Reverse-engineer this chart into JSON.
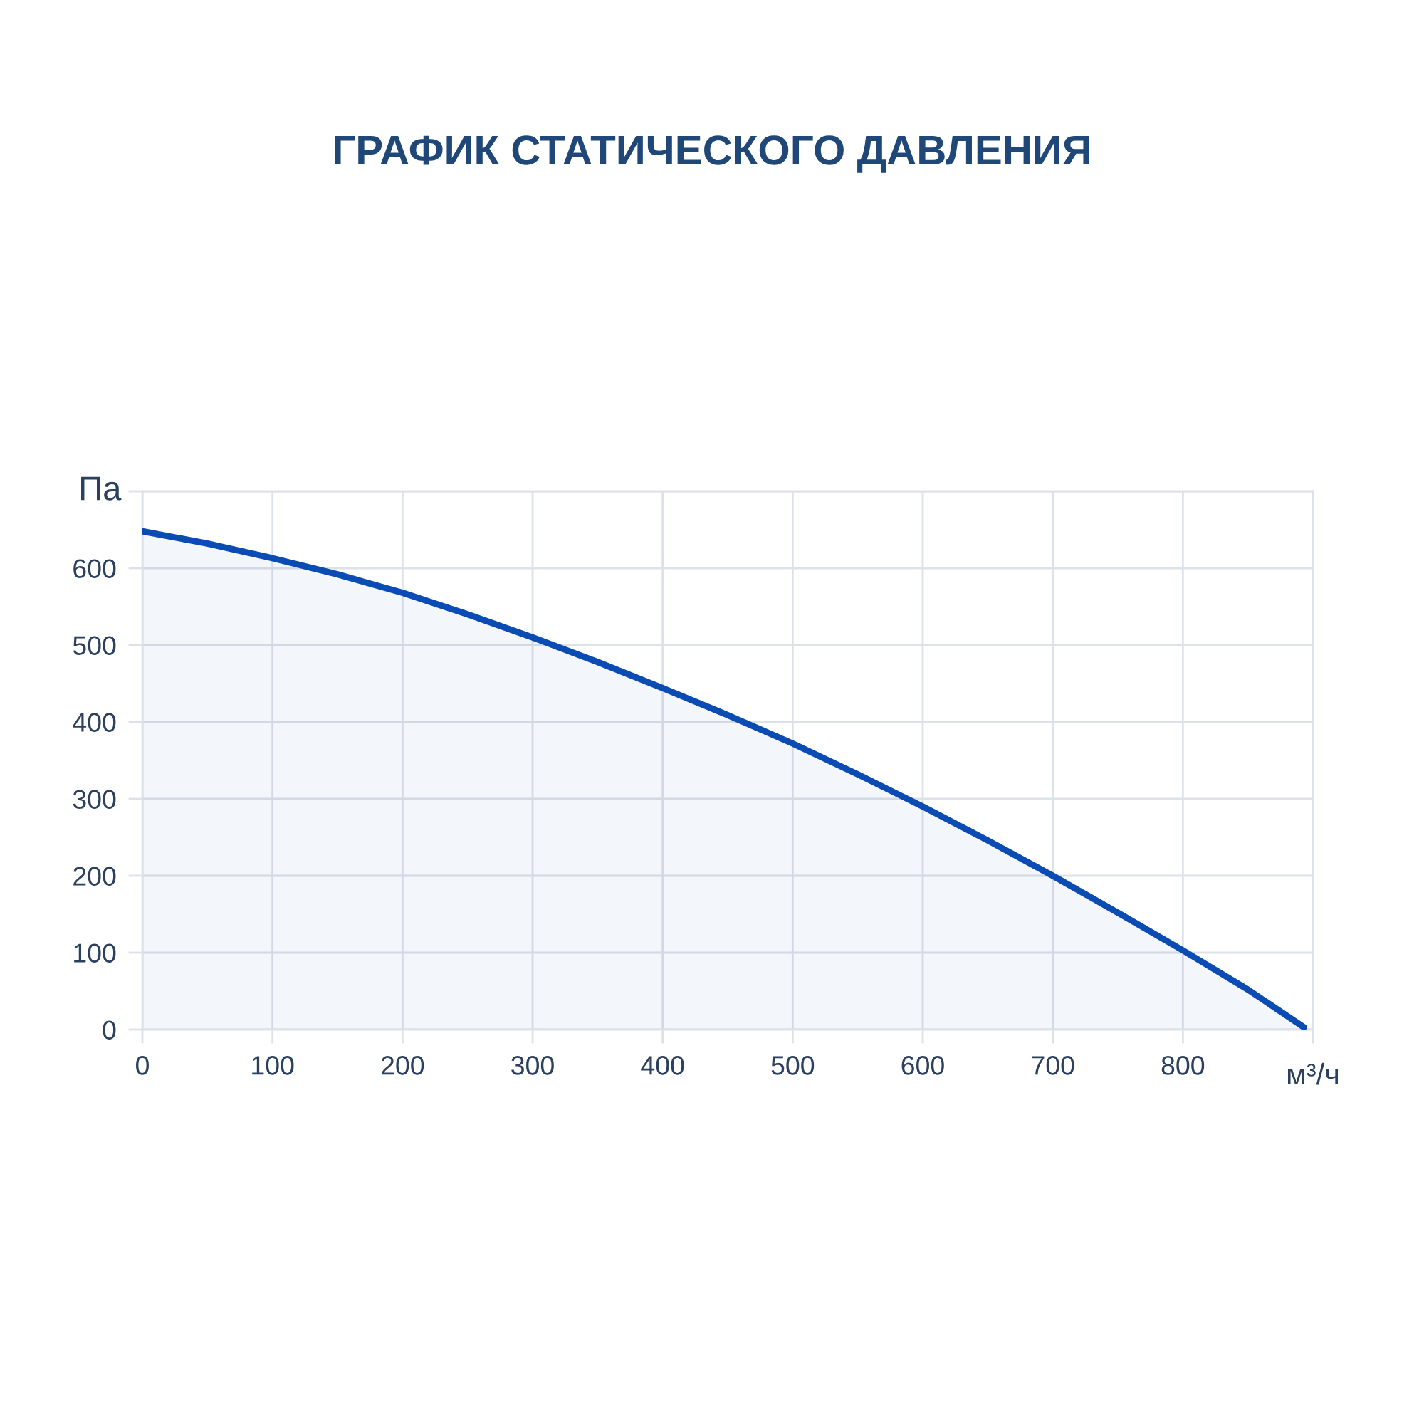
{
  "chart_data": {
    "type": "area",
    "title": "ГРАФИК СТАТИЧЕСКОГО ДАВЛЕНИЯ",
    "xlabel": "м³/ч",
    "ylabel": "Па",
    "x": [
      0,
      50,
      100,
      150,
      200,
      250,
      300,
      350,
      400,
      450,
      500,
      550,
      600,
      650,
      700,
      750,
      800,
      850,
      893
    ],
    "values": [
      648,
      632,
      613,
      592,
      568,
      540,
      510,
      478,
      444,
      409,
      372,
      332,
      290,
      246,
      200,
      152,
      103,
      52,
      3
    ],
    "color": "#0a4bb4",
    "xlim": [
      0,
      900
    ],
    "ylim": [
      0,
      700
    ],
    "xticks": [
      0,
      100,
      200,
      300,
      400,
      500,
      600,
      700,
      800,
      {
        "value": 900,
        "label": null
      }
    ],
    "yticks": [
      0,
      100,
      200,
      300,
      400,
      500,
      600,
      {
        "value": 700,
        "label": null
      }
    ],
    "grid": true,
    "marker": "none",
    "line_style": "solid"
  }
}
